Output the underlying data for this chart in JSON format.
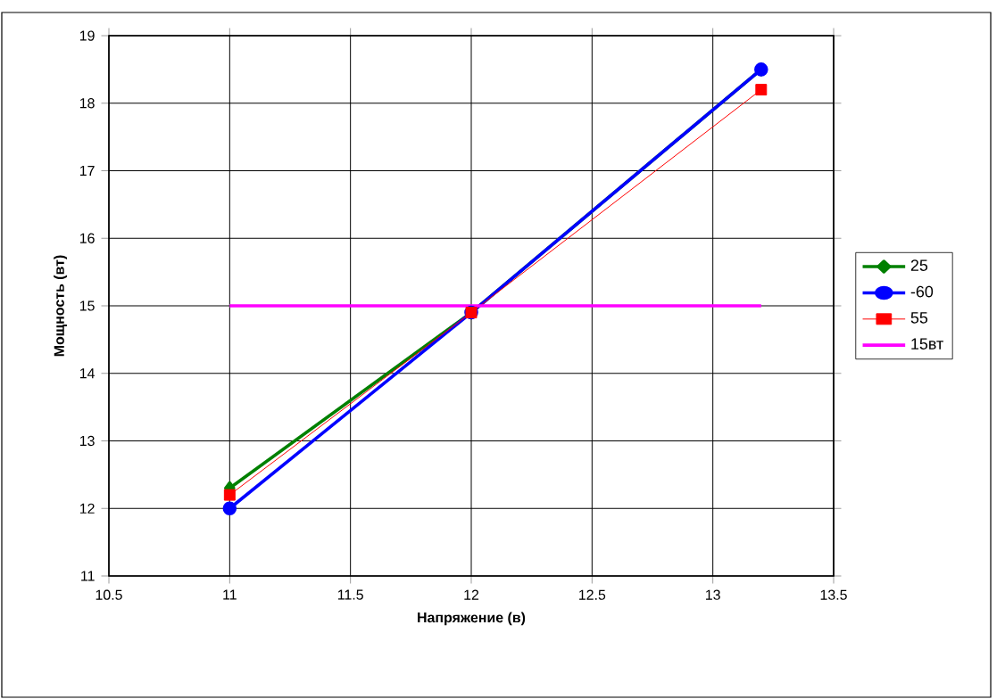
{
  "chart_data": {
    "type": "line",
    "xlabel": "Напряжение (в)",
    "ylabel": "Мощность (вт)",
    "x": [
      11,
      12,
      13.2
    ],
    "series": [
      {
        "name": "25",
        "color": "#008000",
        "marker": "diamond",
        "values": [
          12.3,
          14.9,
          18.5
        ]
      },
      {
        "name": "-60",
        "color": "#0000ff",
        "marker": "circle",
        "values": [
          12.0,
          14.9,
          18.5
        ]
      },
      {
        "name": "55",
        "color": "#ff0000",
        "marker": "square",
        "values": [
          12.2,
          14.9,
          18.2
        ]
      },
      {
        "name": "15вт",
        "color": "#ff00ff",
        "marker": "none",
        "values": [
          15,
          null,
          15
        ]
      }
    ],
    "xlim": [
      10.5,
      13.5
    ],
    "xticks": [
      10.5,
      11,
      11.5,
      12,
      12.5,
      13,
      13.5
    ],
    "ylim": [
      11,
      19
    ],
    "yticks": [
      11,
      12,
      13,
      14,
      15,
      16,
      17,
      18,
      19
    ],
    "grid": true,
    "legend": "right"
  }
}
